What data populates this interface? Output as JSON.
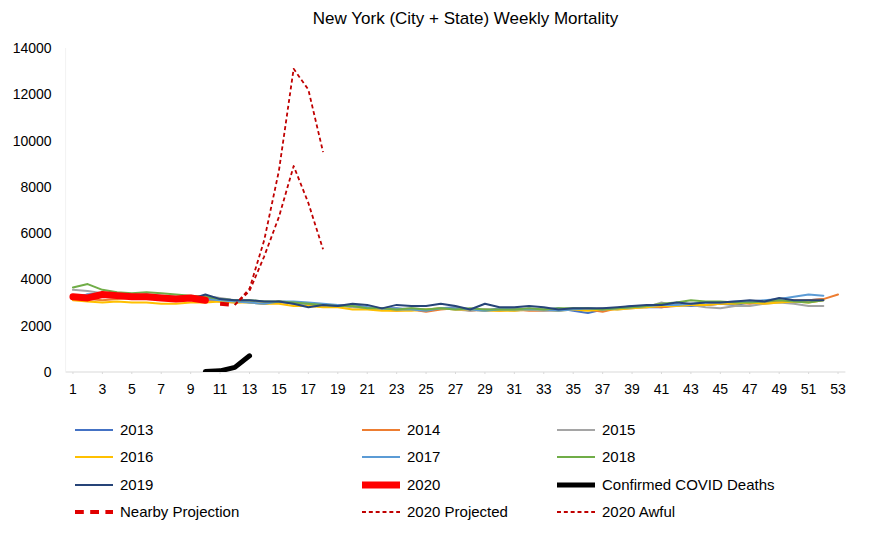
{
  "chart_data": {
    "type": "line",
    "title": "New York (City + State) Weekly Mortality",
    "x": [
      1,
      2,
      3,
      4,
      5,
      6,
      7,
      8,
      9,
      10,
      11,
      12,
      13,
      14,
      15,
      16,
      17,
      18,
      19,
      20,
      21,
      22,
      23,
      24,
      25,
      26,
      27,
      28,
      29,
      30,
      31,
      32,
      33,
      34,
      35,
      36,
      37,
      38,
      39,
      40,
      41,
      42,
      43,
      44,
      45,
      46,
      47,
      48,
      49,
      50,
      51,
      52,
      53
    ],
    "xlim": [
      0.5,
      53.5
    ],
    "xticks": [
      1,
      3,
      5,
      7,
      9,
      11,
      13,
      15,
      17,
      19,
      21,
      23,
      25,
      27,
      29,
      31,
      33,
      35,
      37,
      39,
      41,
      43,
      45,
      47,
      49,
      51,
      53
    ],
    "ylim": [
      0,
      14000
    ],
    "yticks": [
      0,
      2000,
      4000,
      6000,
      8000,
      10000,
      12000,
      14000
    ],
    "grid": false,
    "legend": "bottom",
    "series": [
      {
        "name": "2013",
        "color": "#4472c4",
        "line_style": "solid",
        "values": [
          3200,
          3350,
          3400,
          3300,
          3250,
          3300,
          3250,
          3200,
          3150,
          3200,
          3150,
          3100,
          3000,
          2950,
          3050,
          2950,
          2850,
          2900,
          2850,
          2900,
          2800,
          2750,
          2750,
          2700,
          2650,
          2750,
          2800,
          2700,
          2650,
          2750,
          2750,
          2700,
          2700,
          2750,
          2650,
          2550,
          2700,
          2750,
          2850,
          2800,
          2800,
          2900,
          2850,
          2900,
          2950,
          2900,
          3000,
          3050,
          3050,
          3050,
          3100,
          3150,
          null
        ]
      },
      {
        "name": "2014",
        "color": "#ed7d31",
        "line_style": "solid",
        "values": [
          3200,
          3150,
          3100,
          3150,
          3200,
          3250,
          3200,
          3150,
          3200,
          3100,
          3050,
          3000,
          3050,
          2950,
          3050,
          3000,
          2900,
          2850,
          2900,
          2850,
          2750,
          2700,
          2650,
          2700,
          2600,
          2700,
          2750,
          2650,
          2700,
          2650,
          2700,
          2650,
          2650,
          2700,
          2700,
          2700,
          2600,
          2750,
          2800,
          2850,
          2800,
          2850,
          2950,
          2900,
          2950,
          3000,
          2950,
          3000,
          3050,
          3100,
          3100,
          3150,
          3350
        ]
      },
      {
        "name": "2015",
        "color": "#a5a5a5",
        "line_style": "solid",
        "values": [
          3550,
          3500,
          3400,
          3350,
          3300,
          3350,
          3250,
          3200,
          3250,
          3300,
          3200,
          3100,
          3050,
          3050,
          3000,
          3000,
          2900,
          2850,
          2850,
          2800,
          2750,
          2700,
          2700,
          2750,
          2700,
          2750,
          2700,
          2650,
          2700,
          2700,
          2650,
          2700,
          2650,
          2650,
          2750,
          2700,
          2750,
          2700,
          2750,
          2800,
          3000,
          2850,
          2900,
          2800,
          2750,
          2850,
          2850,
          2950,
          3000,
          2950,
          2850,
          2850,
          null
        ]
      },
      {
        "name": "2016",
        "color": "#ffc000",
        "line_style": "solid",
        "values": [
          3100,
          3050,
          3000,
          3050,
          3000,
          3000,
          2950,
          2950,
          3000,
          3000,
          3050,
          3000,
          3000,
          2950,
          2950,
          2850,
          2850,
          2800,
          2800,
          2700,
          2700,
          2650,
          2650,
          2650,
          2700,
          2750,
          2700,
          2700,
          2650,
          2650,
          2650,
          2700,
          2700,
          2650,
          2700,
          2650,
          2700,
          2700,
          2750,
          2800,
          2850,
          2850,
          2900,
          2900,
          2950,
          2950,
          3000,
          2950,
          3000,
          3050,
          3000,
          3100,
          null
        ]
      },
      {
        "name": "2017",
        "color": "#5b9bd5",
        "line_style": "solid",
        "values": [
          3200,
          3350,
          3300,
          3250,
          3300,
          3350,
          3300,
          3250,
          3200,
          3150,
          3100,
          3050,
          3000,
          2950,
          3050,
          3050,
          3000,
          2950,
          2900,
          2850,
          2800,
          2750,
          2700,
          2700,
          2650,
          2750,
          2750,
          2700,
          2650,
          2700,
          2700,
          2700,
          2700,
          2650,
          2700,
          2750,
          2700,
          2750,
          2800,
          2850,
          2900,
          2900,
          2950,
          3000,
          3000,
          3050,
          3050,
          3100,
          3150,
          3250,
          3350,
          3300,
          null
        ]
      },
      {
        "name": "2018",
        "color": "#70ad47",
        "line_style": "solid",
        "values": [
          3650,
          3800,
          3550,
          3450,
          3400,
          3450,
          3400,
          3350,
          3300,
          3250,
          3150,
          3100,
          3100,
          3050,
          3050,
          3000,
          2950,
          2900,
          2850,
          2850,
          2750,
          2750,
          2700,
          2750,
          2700,
          2750,
          2700,
          2750,
          2700,
          2700,
          2700,
          2750,
          2700,
          2750,
          2750,
          2750,
          2700,
          2750,
          2800,
          2850,
          2950,
          3000,
          3100,
          3050,
          3050,
          3000,
          3000,
          3050,
          3100,
          3050,
          3000,
          3100,
          null
        ]
      },
      {
        "name": "2019",
        "color": "#264478",
        "line_style": "solid",
        "values": [
          3200,
          3200,
          3300,
          3300,
          3250,
          3250,
          3200,
          3150,
          3150,
          3350,
          3150,
          3100,
          3100,
          3050,
          3050,
          2950,
          2800,
          2900,
          2850,
          2950,
          2900,
          2750,
          2900,
          2850,
          2850,
          2950,
          2850,
          2700,
          2950,
          2800,
          2800,
          2850,
          2800,
          2700,
          2750,
          2750,
          2750,
          2800,
          2850,
          2900,
          2900,
          3000,
          2950,
          3000,
          3000,
          3050,
          3100,
          3050,
          3200,
          3100,
          3100,
          3100,
          null
        ]
      },
      {
        "name": "2020",
        "color": "#ff0000",
        "line_style": "solid",
        "values": [
          3250,
          3200,
          3350,
          3300,
          3250,
          3250,
          3200,
          3150,
          3200,
          3100,
          null,
          null,
          null,
          null,
          null,
          null,
          null,
          null,
          null,
          null,
          null,
          null,
          null,
          null,
          null,
          null,
          null,
          null,
          null,
          null,
          null,
          null,
          null,
          null,
          null,
          null,
          null,
          null,
          null,
          null,
          null,
          null,
          null,
          null,
          null,
          null,
          null,
          null,
          null,
          null,
          null,
          null,
          null
        ]
      },
      {
        "name": "Confirmed COVID Deaths",
        "color": "#000000",
        "line_style": "solid",
        "values": [
          null,
          null,
          null,
          null,
          null,
          null,
          null,
          null,
          null,
          20,
          50,
          200,
          700,
          null,
          null,
          null,
          null,
          null,
          null,
          null,
          null,
          null,
          null,
          null,
          null,
          null,
          null,
          null,
          null,
          null,
          null,
          null,
          null,
          null,
          null,
          null,
          null,
          null,
          null,
          null,
          null,
          null,
          null,
          null,
          null,
          null,
          null,
          null,
          null,
          null,
          null,
          null,
          null
        ]
      },
      {
        "name": "Nearby Projection",
        "color": "#e00000",
        "line_style": "dashed",
        "values": [
          null,
          null,
          null,
          null,
          null,
          null,
          null,
          null,
          null,
          null,
          2950,
          2900,
          null,
          null,
          null,
          null,
          null,
          null,
          null,
          null,
          null,
          null,
          null,
          null,
          null,
          null,
          null,
          null,
          null,
          null,
          null,
          null,
          null,
          null,
          null,
          null,
          null,
          null,
          null,
          null,
          null,
          null,
          null,
          null,
          null,
          null,
          null,
          null,
          null,
          null,
          null,
          null,
          null
        ]
      },
      {
        "name": "2020 Projected",
        "color": "#c00000",
        "line_style": "dashed",
        "values": [
          null,
          null,
          null,
          null,
          null,
          null,
          null,
          null,
          null,
          null,
          null,
          2900,
          3500,
          5000,
          6700,
          8900,
          7300,
          5300,
          null,
          null,
          null,
          null,
          null,
          null,
          null,
          null,
          null,
          null,
          null,
          null,
          null,
          null,
          null,
          null,
          null,
          null,
          null,
          null,
          null,
          null,
          null,
          null,
          null,
          null,
          null,
          null,
          null,
          null,
          null,
          null,
          null,
          null,
          null
        ]
      },
      {
        "name": "2020 Awful",
        "color": "#c00000",
        "line_style": "dashed",
        "values": [
          null,
          null,
          null,
          null,
          null,
          null,
          null,
          null,
          null,
          null,
          null,
          2900,
          3600,
          5700,
          8700,
          13100,
          12200,
          9500,
          null,
          null,
          null,
          null,
          null,
          null,
          null,
          null,
          null,
          null,
          null,
          null,
          null,
          null,
          null,
          null,
          null,
          null,
          null,
          null,
          null,
          null,
          null,
          null,
          null,
          null,
          null,
          null,
          null,
          null,
          null,
          null,
          null,
          null,
          null
        ]
      }
    ]
  }
}
